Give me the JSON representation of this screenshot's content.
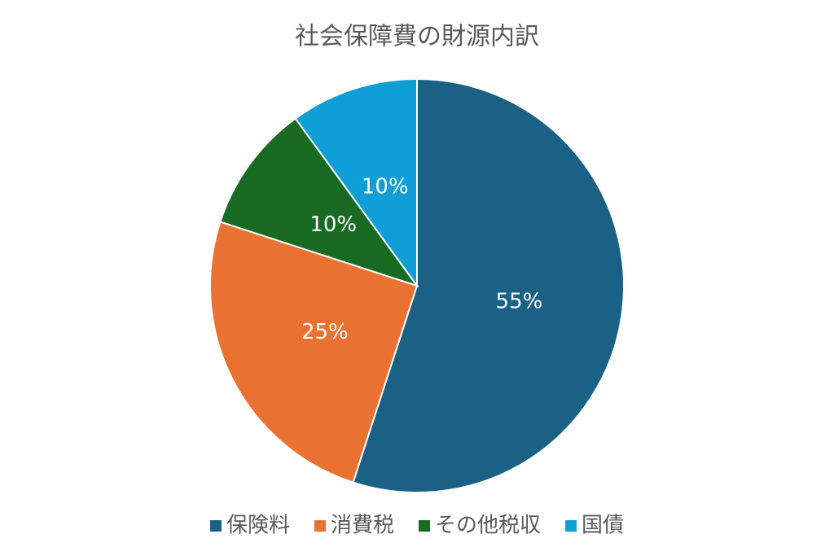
{
  "chart_data": {
    "type": "pie",
    "title": "社会保障費の財源内訳",
    "categories": [
      "保険料",
      "消費税",
      "その他税収",
      "国債"
    ],
    "values": [
      55,
      25,
      10,
      10
    ],
    "value_labels": [
      "55%",
      "25%",
      "10%",
      "10%"
    ],
    "colors": [
      "#1a6185",
      "#e97132",
      "#196b24",
      "#0f9ed5"
    ],
    "legend": "bottom"
  }
}
